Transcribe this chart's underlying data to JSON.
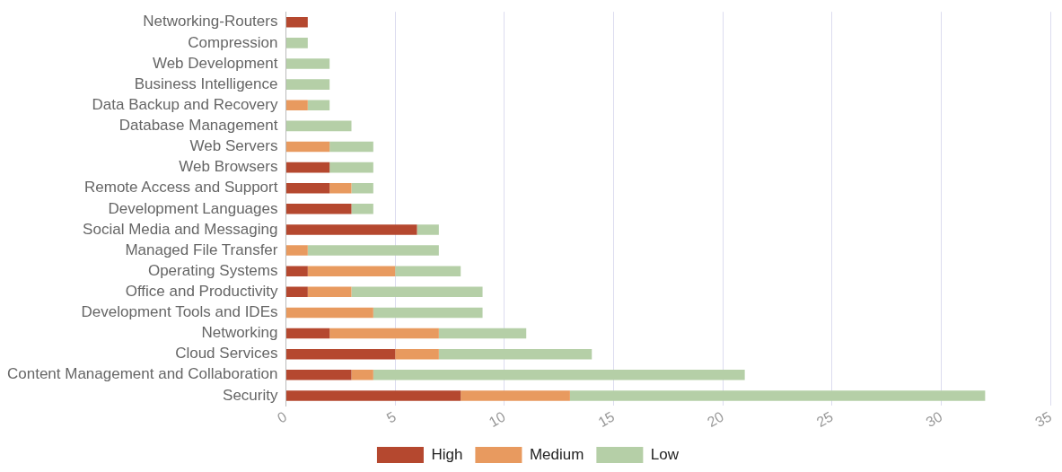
{
  "chart_data": {
    "type": "bar",
    "orientation": "horizontal",
    "stacked": true,
    "categories": [
      "Networking-Routers",
      "Compression",
      "Web Development",
      "Business Intelligence",
      "Data Backup and Recovery",
      "Database Management",
      "Web Servers",
      "Web Browsers",
      "Remote Access and Support",
      "Development Languages",
      "Social Media and Messaging",
      "Managed File Transfer",
      "Operating Systems",
      "Office and Productivity",
      "Development Tools and IDEs",
      "Networking",
      "Cloud Services",
      "Content Management and Collaboration",
      "Security"
    ],
    "series": [
      {
        "name": "High",
        "color": "#b5482f",
        "values": [
          1,
          null,
          null,
          null,
          null,
          null,
          null,
          2,
          2,
          3,
          6,
          null,
          1,
          1,
          null,
          2,
          5,
          3,
          8
        ]
      },
      {
        "name": "Medium",
        "color": "#e89a5f",
        "values": [
          null,
          null,
          null,
          null,
          1,
          null,
          2,
          null,
          1,
          null,
          null,
          1,
          4,
          2,
          4,
          5,
          2,
          1,
          5
        ]
      },
      {
        "name": "Low",
        "color": "#b5cfa7",
        "values": [
          null,
          1,
          2,
          2,
          1,
          3,
          2,
          2,
          1,
          1,
          1,
          6,
          3,
          6,
          5,
          4,
          7,
          17,
          19
        ]
      }
    ],
    "xlim": [
      0,
      35
    ],
    "xticks": [
      0,
      5,
      10,
      15,
      20,
      25,
      30,
      35
    ],
    "grid": "x",
    "legend": "bottom"
  }
}
